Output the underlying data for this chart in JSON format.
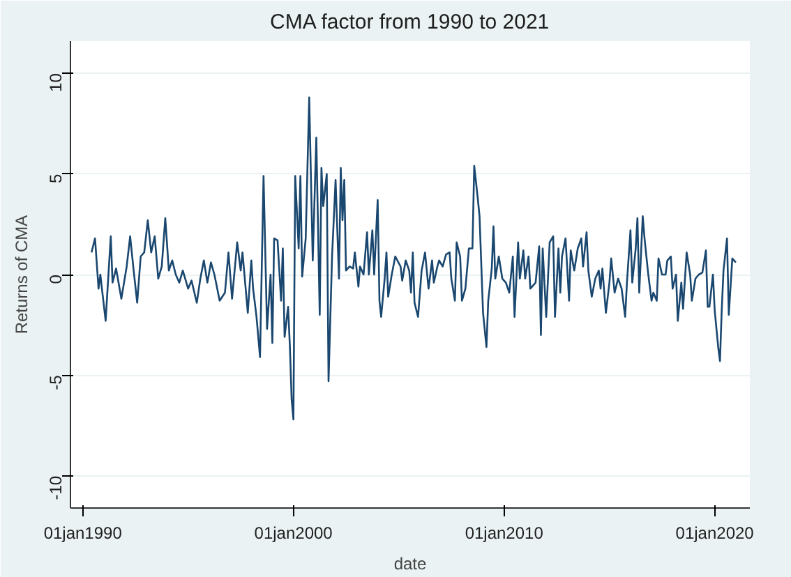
{
  "chart_data": {
    "type": "line",
    "title": "CMA factor from 1990 to 2021",
    "xlabel": "date",
    "ylabel": "Returns of CMA",
    "x": [
      "1990-06",
      "1990-08",
      "1990-10",
      "1990-11",
      "1991-02",
      "1991-05",
      "1991-06",
      "1991-08",
      "1991-11",
      "1992-02",
      "1992-04",
      "1992-06",
      "1992-08",
      "1992-10",
      "1992-12",
      "1993-02",
      "1993-04",
      "1993-06",
      "1993-08",
      "1993-10",
      "1993-12",
      "1994-02",
      "1994-04",
      "1994-06",
      "1994-08",
      "1994-10",
      "1995-01",
      "1995-03",
      "1995-06",
      "1995-08",
      "1995-10",
      "1995-12",
      "1996-02",
      "1996-04",
      "1996-07",
      "1996-10",
      "1996-12",
      "1997-02",
      "1997-05",
      "1997-07",
      "1997-08",
      "1997-11",
      "1998-01",
      "1998-02",
      "1998-04",
      "1998-06",
      "1998-08",
      "1998-10",
      "1998-12",
      "1999-01",
      "1999-02",
      "1999-04",
      "1999-06",
      "1999-07",
      "1999-08",
      "1999-10",
      "1999-11",
      "1999-12",
      "2000-01",
      "2000-02",
      "2000-04",
      "2000-05",
      "2000-06",
      "2000-08",
      "2000-10",
      "2000-12",
      "2001-02",
      "2001-04",
      "2001-05",
      "2001-06",
      "2001-08",
      "2001-09",
      "2001-11",
      "2002-01",
      "2002-03",
      "2002-04",
      "2002-05",
      "2002-06",
      "2002-07",
      "2002-09",
      "2002-11",
      "2002-12",
      "2003-02",
      "2003-03",
      "2003-05",
      "2003-07",
      "2003-08",
      "2003-10",
      "2003-11",
      "2004-01",
      "2004-02",
      "2004-03",
      "2004-05",
      "2004-06",
      "2004-07",
      "2004-09",
      "2004-11",
      "2005-02",
      "2005-03",
      "2005-05",
      "2005-07",
      "2005-08",
      "2005-09",
      "2005-10",
      "2005-12",
      "2006-02",
      "2006-04",
      "2006-06",
      "2006-08",
      "2006-09",
      "2006-11",
      "2006-12",
      "2007-02",
      "2007-04",
      "2007-06",
      "2007-07",
      "2007-09",
      "2007-10",
      "2007-12",
      "2008-01",
      "2008-03",
      "2008-05",
      "2008-07",
      "2008-08",
      "2008-10",
      "2008-11",
      "2009-01",
      "2009-03",
      "2009-04",
      "2009-06",
      "2009-07",
      "2009-08",
      "2009-10",
      "2009-12",
      "2010-02",
      "2010-04",
      "2010-06",
      "2010-07",
      "2010-09",
      "2010-10",
      "2010-12",
      "2011-01",
      "2011-03",
      "2011-04",
      "2011-07",
      "2011-09",
      "2011-10",
      "2011-11",
      "2012-01",
      "2012-03",
      "2012-05",
      "2012-06",
      "2012-08",
      "2012-09",
      "2012-10",
      "2012-12",
      "2013-02",
      "2013-03",
      "2013-05",
      "2013-07",
      "2013-09",
      "2013-10",
      "2013-12",
      "2014-01",
      "2014-03",
      "2014-05",
      "2014-07",
      "2014-08",
      "2014-09",
      "2014-11",
      "2015-01",
      "2015-02",
      "2015-04",
      "2015-06",
      "2015-08",
      "2015-10",
      "2015-11",
      "2016-01",
      "2016-02",
      "2016-04",
      "2016-05",
      "2016-06",
      "2016-08",
      "2016-09",
      "2016-11",
      "2017-01",
      "2017-02",
      "2017-04",
      "2017-05",
      "2017-07",
      "2017-09",
      "2017-10",
      "2017-12",
      "2018-01",
      "2018-03",
      "2018-04",
      "2018-06",
      "2018-07",
      "2018-09",
      "2018-11",
      "2018-12",
      "2019-02",
      "2019-04",
      "2019-06",
      "2019-08",
      "2019-09",
      "2019-10",
      "2019-12",
      "2020-01",
      "2020-03",
      "2020-04",
      "2020-05",
      "2020-06",
      "2020-08",
      "2020-09",
      "2020-11",
      "2021-01"
    ],
    "series": [
      {
        "color": "#1a476f",
        "values": [
          1.1,
          1.8,
          -0.7,
          0,
          -2.3,
          1.9,
          -0.4,
          0.3,
          -1.2,
          0.4,
          1.9,
          0.2,
          -1.4,
          0.9,
          1.1,
          2.7,
          1.1,
          1.9,
          -0.2,
          0.4,
          2.8,
          0.2,
          0.7,
          0,
          -0.4,
          0.2,
          -0.7,
          -0.3,
          -1.4,
          -0.2,
          0.7,
          -0.4,
          0.6,
          0,
          -1.3,
          -0.9,
          1.1,
          -1.2,
          1.6,
          0.2,
          1.1,
          -1.9,
          0.7,
          -0.7,
          -2.1,
          -4.1,
          4.9,
          -2.7,
          0,
          -3.4,
          1.8,
          1.7,
          -1.3,
          1.3,
          -3.1,
          -1.6,
          -3.6,
          -6.2,
          -7.2,
          4.9,
          1.3,
          4.9,
          -0.1,
          1.8,
          8.8,
          0.7,
          6.8,
          -2,
          5.3,
          3.4,
          5,
          -5.3,
          0.9,
          4.7,
          -0.2,
          5.3,
          2.7,
          4.7,
          0.2,
          0.4,
          0.3,
          1.1,
          -0.6,
          0.4,
          0,
          2.1,
          0,
          2.2,
          0,
          3.7,
          -1.3,
          -2.1,
          -0.2,
          1.1,
          -1.1,
          0,
          0.9,
          0.4,
          -0.3,
          0.7,
          0.2,
          -0.9,
          1.1,
          -1.4,
          -2.1,
          0.2,
          1.1,
          -0.7,
          0.7,
          -0.4,
          0.4,
          0.7,
          0.4,
          1,
          1.1,
          -0.2,
          -1.3,
          1.6,
          0.9,
          -1.3,
          -0.7,
          1.3,
          1.3,
          5.4,
          3.8,
          2.9,
          -1.9,
          -3.6,
          -1.3,
          0.3,
          2.4,
          -0.2,
          0.9,
          -0.2,
          -0.4,
          -0.9,
          0.9,
          -2.1,
          1.6,
          -0.2,
          1.2,
          -0.2,
          0.9,
          -0.7,
          -0.4,
          1.4,
          -3,
          1.3,
          -2.1,
          1.6,
          1.9,
          -2.1,
          1.3,
          -0.9,
          0.9,
          1.8,
          -1.3,
          1.2,
          0.2,
          1.3,
          1.8,
          0.4,
          2.1,
          0.2,
          -1.1,
          -0.2,
          0.2,
          -0.7,
          0.3,
          -1.9,
          -0.4,
          0.8,
          -0.9,
          -0.2,
          -0.7,
          -2.1,
          -0.4,
          2.2,
          -0.4,
          1.3,
          2.8,
          -0.9,
          2.9,
          1.8,
          0.1,
          -1.3,
          -0.9,
          -1.3,
          0.8,
          0,
          0,
          0.7,
          0.9,
          -0.7,
          0,
          -2.3,
          -0.4,
          -1.7,
          1.1,
          0,
          -1.3,
          -0.2,
          0,
          0.1,
          1.2,
          -1.6,
          -1.6,
          0,
          -1.8,
          -3.6,
          -4.3,
          -1.8,
          0.2,
          1.8,
          -2,
          0.8,
          0.6
        ]
      }
    ],
    "xlim": [
      "1989-06",
      "2021-09"
    ],
    "xticks": [
      {
        "value": "1990-01",
        "label": "01jan1990"
      },
      {
        "value": "2000-01",
        "label": "01jan2000"
      },
      {
        "value": "2010-01",
        "label": "01jan2010"
      },
      {
        "value": "2020-01",
        "label": "01jan2020"
      }
    ],
    "ylim": [
      -11.6,
      11.6
    ],
    "yticks": [
      -10,
      -5,
      0,
      5,
      10
    ],
    "grid": "y",
    "marker": "none",
    "line_style": "solid"
  }
}
